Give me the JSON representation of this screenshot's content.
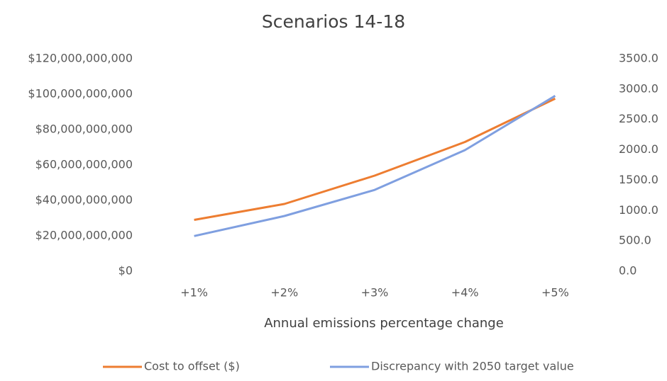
{
  "chart_data": {
    "type": "line",
    "title": "Scenarios 14-18",
    "x_label": "Annual emissions percentage change",
    "categories": [
      "+1%",
      "+2%",
      "+3%",
      "+4%",
      "+5%"
    ],
    "series": [
      {
        "name": "Cost to offset ($)",
        "color": "#ed7d31",
        "values": [
          29000000000,
          38000000000,
          54000000000,
          73000000000,
          97500000000
        ]
      },
      {
        "name": "Discrepancy with 2050 target value",
        "color": "#7f9fe0",
        "axis": "y2",
        "values": [
          580,
          910,
          1340,
          1995,
          2890
        ]
      }
    ],
    "ylim": [
      0,
      120000000000
    ],
    "yticks": [
      {
        "value": 0,
        "label": "$0"
      },
      {
        "value": 20000000000,
        "label": "$20,000,000,000"
      },
      {
        "value": 40000000000,
        "label": "$40,000,000,000"
      },
      {
        "value": 60000000000,
        "label": "$60,000,000,000"
      },
      {
        "value": 80000000000,
        "label": "$80,000,000,000"
      },
      {
        "value": 100000000000,
        "label": "$100,000,000,000"
      },
      {
        "value": 120000000000,
        "label": "$120,000,000,000"
      }
    ],
    "y2lim": [
      0,
      3500
    ],
    "y2ticks": [
      {
        "value": 0,
        "label": "0.0"
      },
      {
        "value": 500,
        "label": "500.0"
      },
      {
        "value": 1000,
        "label": "1000.0"
      },
      {
        "value": 1500,
        "label": "1500.0"
      },
      {
        "value": 2000,
        "label": "2000.0"
      },
      {
        "value": 2500,
        "label": "2500.0"
      },
      {
        "value": 3000,
        "label": "3000.0"
      },
      {
        "value": 3500,
        "label": "3500.0"
      }
    ],
    "grid": false,
    "legend": "bottom"
  }
}
